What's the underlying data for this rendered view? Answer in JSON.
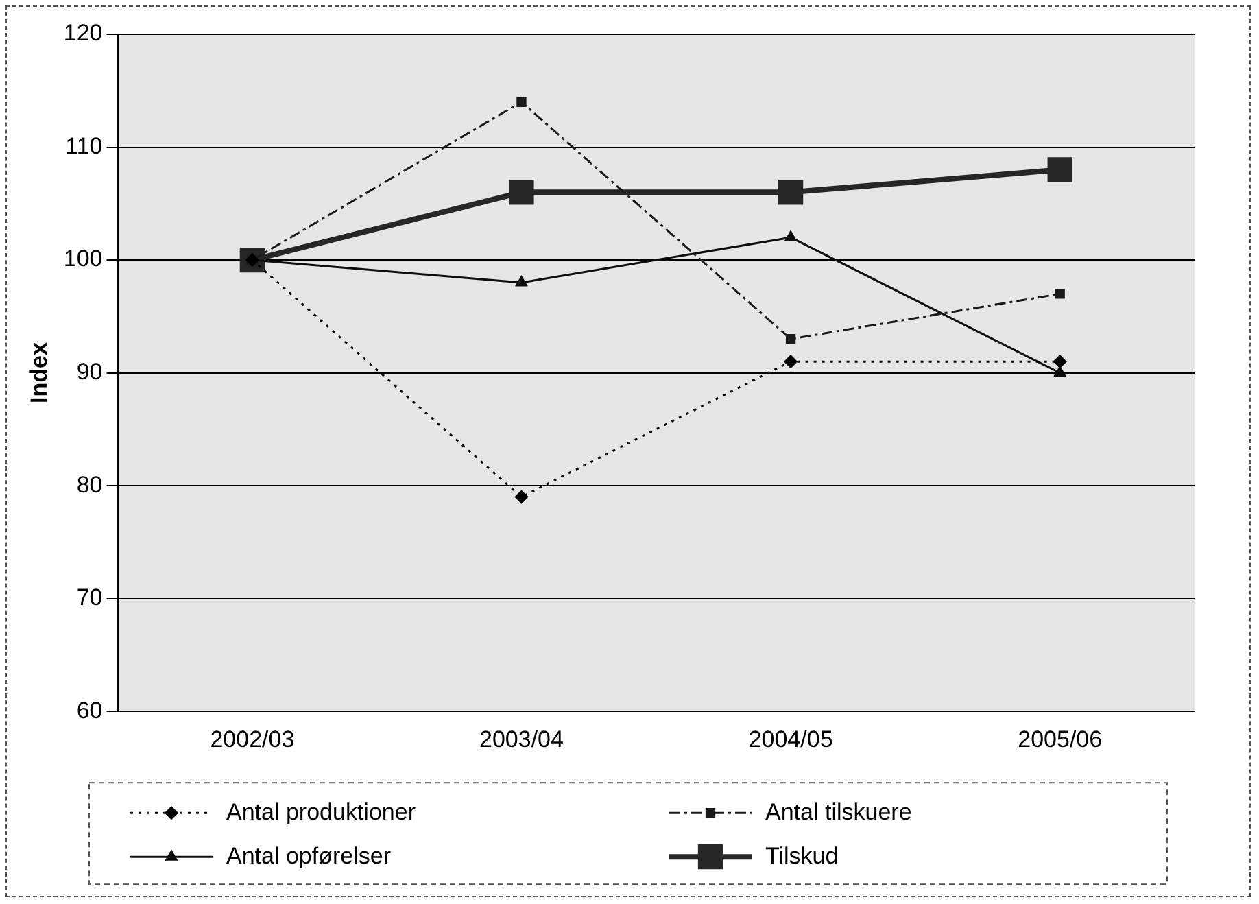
{
  "chart_data": {
    "type": "line",
    "ylabel": "Index",
    "categories": [
      "2002/03",
      "2003/04",
      "2004/05",
      "2005/06"
    ],
    "series": [
      {
        "name": "Antal produktioner",
        "color": "#000000",
        "values": [
          100,
          79,
          91,
          91
        ],
        "marker": "diamond",
        "line_style": "dotted"
      },
      {
        "name": "Antal tilskuere",
        "color": "#1a1a1a",
        "values": [
          100,
          114,
          93,
          97
        ],
        "marker": "square",
        "line_style": "dashed"
      },
      {
        "name": "Antal opførelser",
        "color": "#0d0d0d",
        "values": [
          100,
          98,
          102,
          90
        ],
        "marker": "triangle",
        "line_style": "solid"
      },
      {
        "name": "Tilskud",
        "color": "#262626",
        "values": [
          100,
          106,
          106,
          108
        ],
        "marker": "square",
        "line_style": "solid"
      }
    ],
    "ylim": [
      60,
      120
    ],
    "yticks": [
      60,
      70,
      80,
      90,
      100,
      110,
      120
    ],
    "grid": "y",
    "legend": "bottom"
  }
}
